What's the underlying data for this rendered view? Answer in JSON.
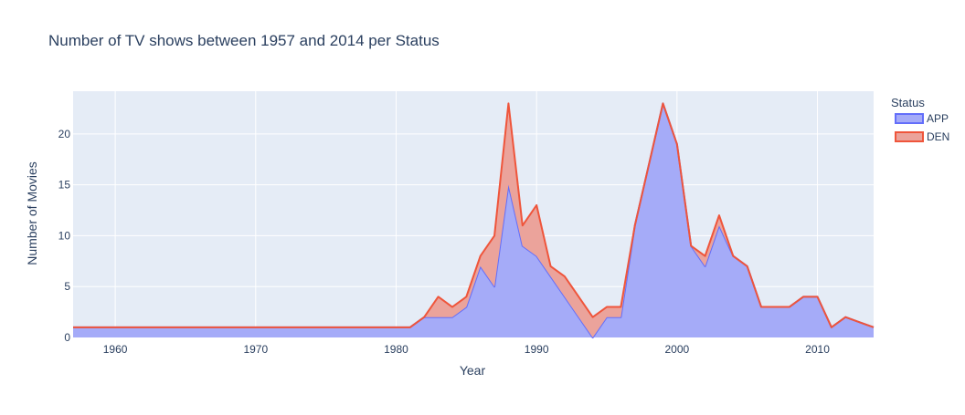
{
  "chart_data": {
    "type": "area",
    "title": "Number of TV shows between 1957 and 2014 per Status",
    "xlabel": "Year",
    "ylabel": "Number of Movies",
    "xlim": [
      1957,
      2014
    ],
    "ylim": [
      0,
      24.2
    ],
    "x_ticks": [
      1960,
      1970,
      1980,
      1990,
      2000,
      2010
    ],
    "y_ticks": [
      0,
      5,
      10,
      15,
      20
    ],
    "stacked": true,
    "grid": true,
    "legend": {
      "title": "Status",
      "placement": "right"
    },
    "x": [
      1957,
      1958,
      1959,
      1960,
      1961,
      1962,
      1963,
      1964,
      1965,
      1966,
      1967,
      1968,
      1969,
      1970,
      1971,
      1972,
      1973,
      1974,
      1975,
      1976,
      1977,
      1978,
      1979,
      1980,
      1981,
      1982,
      1983,
      1984,
      1985,
      1986,
      1987,
      1988,
      1989,
      1990,
      1991,
      1992,
      1993,
      1994,
      1995,
      1996,
      1997,
      1998,
      1999,
      2000,
      2001,
      2002,
      2003,
      2004,
      2005,
      2006,
      2007,
      2008,
      2009,
      2010,
      2011,
      2012,
      2013,
      2014
    ],
    "series": [
      {
        "name": "APP",
        "line_color": "#636efa",
        "fill_color": "#a5abf8",
        "values": [
          1,
          1,
          1,
          1,
          1,
          1,
          1,
          1,
          1,
          1,
          1,
          1,
          1,
          1,
          1,
          1,
          1,
          1,
          1,
          1,
          1,
          1,
          1,
          1,
          1,
          2,
          2,
          2,
          3,
          7,
          5,
          15,
          9,
          8,
          6,
          4,
          2,
          0,
          2,
          2,
          11,
          17,
          23,
          19,
          9,
          7,
          11,
          8,
          7,
          3,
          3,
          3,
          4,
          4,
          1,
          2,
          1.5,
          1
        ]
      },
      {
        "name": "DEN",
        "line_color": "#ef553b",
        "fill_color": "#eba39b",
        "values": [
          0,
          0,
          0,
          0,
          0,
          0,
          0,
          0,
          0,
          0,
          0,
          0,
          0,
          0,
          0,
          0,
          0,
          0,
          0,
          0,
          0,
          0,
          0,
          0,
          0,
          0,
          2,
          1,
          1,
          1,
          5,
          8,
          2,
          5,
          1,
          2,
          2,
          2,
          1,
          1,
          0,
          0,
          0,
          0,
          0,
          1,
          1,
          0,
          0,
          0,
          0,
          0,
          0,
          0,
          0,
          0,
          0,
          0
        ]
      }
    ]
  }
}
